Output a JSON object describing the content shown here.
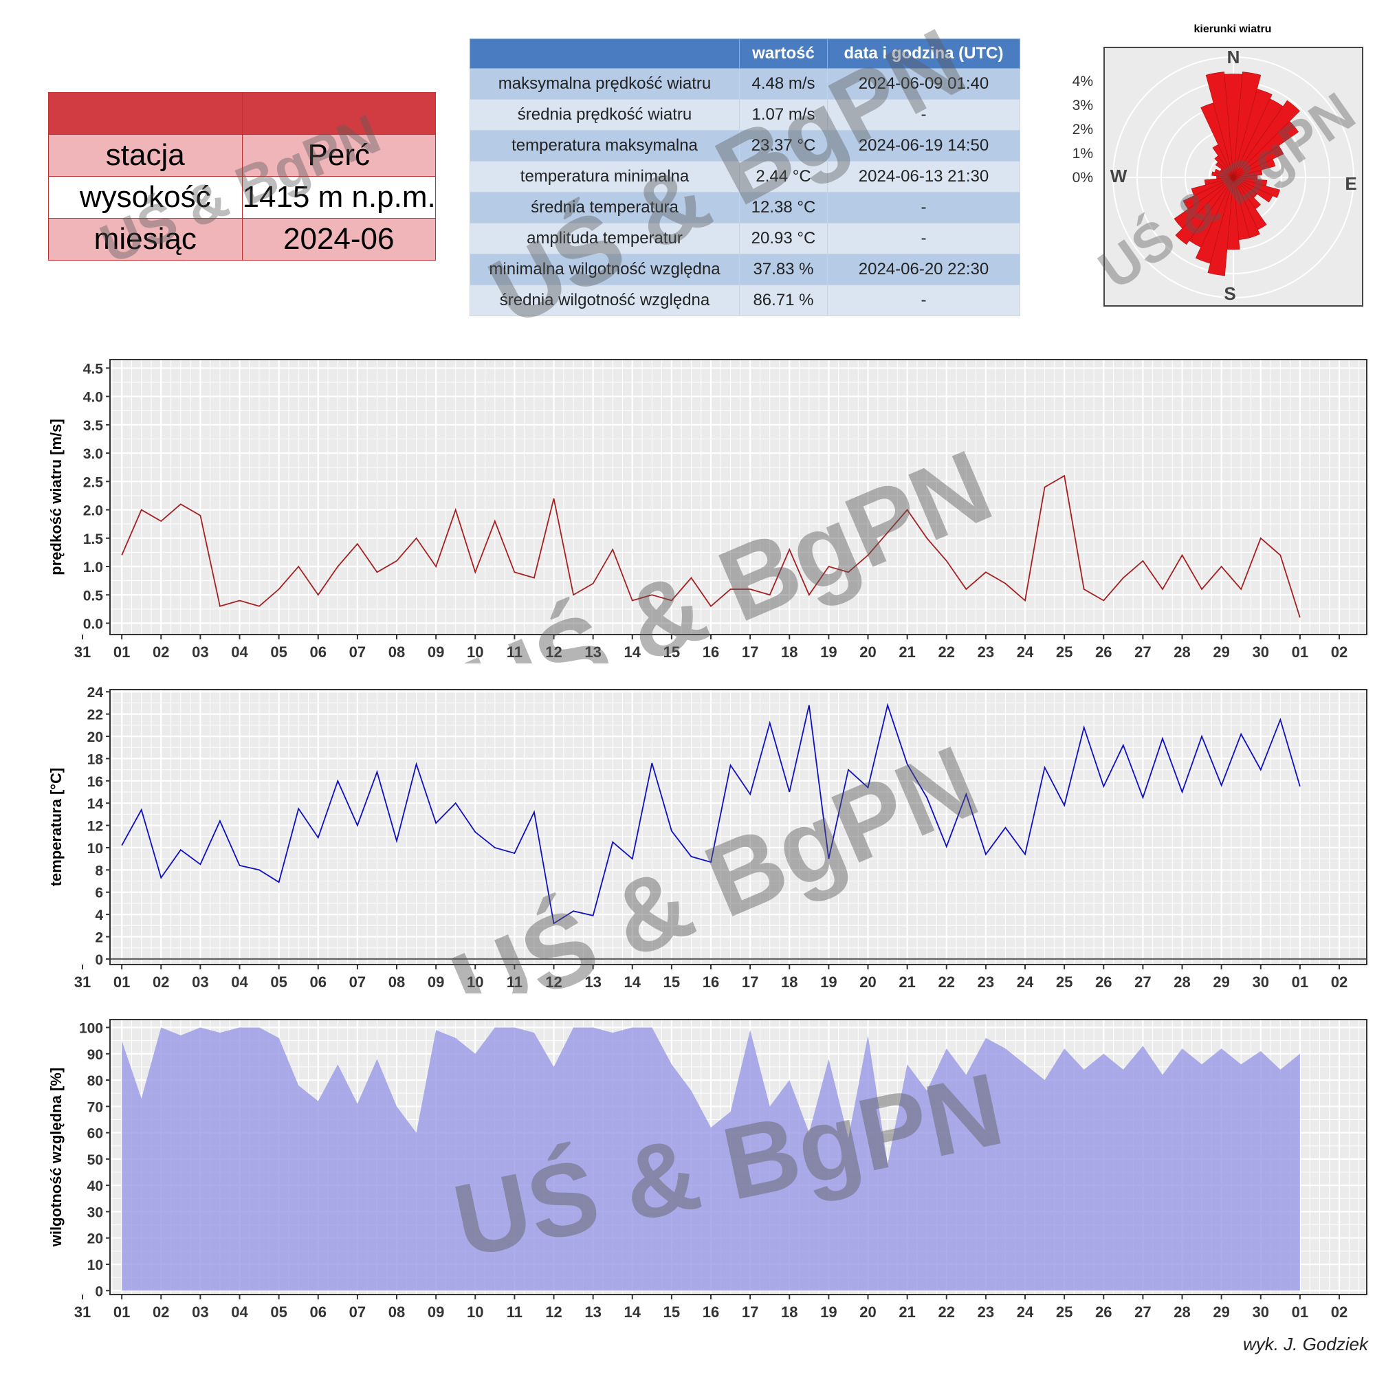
{
  "station": {
    "rows": [
      {
        "label": "stacja",
        "value": "Perć"
      },
      {
        "label": "wysokość",
        "value": "1415 m n.p.m."
      },
      {
        "label": "miesiąc",
        "value": "2024-06"
      }
    ]
  },
  "stats": {
    "headers": [
      "",
      "wartość",
      "data i godzina (UTC)"
    ],
    "rows": [
      {
        "name": "maksymalna prędkość wiatru",
        "value": "4.48 m/s",
        "date": "2024-06-09 01:40"
      },
      {
        "name": "średnia prędkość wiatru",
        "value": "1.07 m/s",
        "date": "-"
      },
      {
        "name": "temperatura maksymalna",
        "value": "23.37 °C",
        "date": "2024-06-19 14:50"
      },
      {
        "name": "temperatura minimalna",
        "value": "2.44 °C",
        "date": "2024-06-13 21:30"
      },
      {
        "name": "średnia temperatura",
        "value": "12.38 °C",
        "date": "-"
      },
      {
        "name": "amplituda temperatur",
        "value": "20.93 °C",
        "date": "-"
      },
      {
        "name": "minimalna wilgotność względna",
        "value": "37.83 %",
        "date": "2024-06-20 22:30"
      },
      {
        "name": "średnia wilgotność względna",
        "value": "86.71 %",
        "date": "-"
      }
    ]
  },
  "watermark": "UŚ & BgPN",
  "credit": "wyk. J. Godziek",
  "colors": {
    "wind": "#a52020",
    "temperature": "#1010c0",
    "humidity": "#9999e6",
    "rose": "#e8151b",
    "panel_bg": "#ebebeb"
  },
  "chart_data": [
    {
      "type": "bar",
      "subtype": "polar-wind-rose",
      "title": "kierunki wiatru",
      "direction_labels": [
        "N",
        "E",
        "S",
        "W"
      ],
      "radial_ticks": [
        "0%",
        "1%",
        "2%",
        "3%",
        "4%"
      ],
      "rmax_percent": 5,
      "directions_deg": [
        0,
        10,
        20,
        30,
        40,
        50,
        60,
        70,
        80,
        90,
        100,
        110,
        120,
        130,
        140,
        150,
        160,
        170,
        180,
        190,
        200,
        210,
        220,
        230,
        240,
        250,
        260,
        270,
        280,
        290,
        300,
        310,
        320,
        330,
        340,
        350
      ],
      "frequency_percent": [
        4.3,
        4.4,
        3.8,
        3.6,
        3.9,
        3.3,
        2.3,
        1.8,
        1.2,
        1.0,
        1.4,
        2.0,
        1.8,
        1.2,
        1.6,
        2.4,
        2.6,
        2.6,
        3.0,
        4.1,
        3.7,
        3.2,
        3.4,
        3.0,
        2.3,
        1.8,
        1.2,
        0.7,
        0.9,
        0.8,
        0.6,
        0.9,
        1.1,
        1.5,
        3.2,
        4.4
      ]
    },
    {
      "type": "line",
      "ylabel": "prędkość wiatru [m/s]",
      "x_ticks": [
        "31",
        "01",
        "02",
        "03",
        "04",
        "05",
        "06",
        "07",
        "08",
        "09",
        "10",
        "11",
        "12",
        "13",
        "14",
        "15",
        "16",
        "17",
        "18",
        "19",
        "20",
        "21",
        "22",
        "23",
        "24",
        "25",
        "26",
        "27",
        "28",
        "29",
        "30",
        "01",
        "02"
      ],
      "x_range_days": [
        -0.3,
        31.7
      ],
      "ylim": [
        -0.2,
        4.65
      ],
      "y_ticks": [
        0.0,
        0.5,
        1.0,
        1.5,
        2.0,
        2.5,
        3.0,
        3.5,
        4.0,
        4.5
      ],
      "y_tick_labels": [
        "0.0",
        "0.5",
        "1.0",
        "1.5",
        "2.0",
        "2.5",
        "3.0",
        "3.5",
        "4.0",
        "4.5"
      ],
      "day_offset": [
        0,
        0.5,
        1,
        1.5,
        2,
        2.5,
        3,
        3.5,
        4,
        4.5,
        5,
        5.5,
        6,
        6.5,
        7,
        7.5,
        8,
        8.5,
        9,
        9.5,
        10,
        10.5,
        11,
        11.5,
        12,
        12.5,
        13,
        13.5,
        14,
        14.5,
        15,
        15.5,
        16,
        16.5,
        17,
        17.5,
        18,
        18.5,
        19,
        19.5,
        20,
        20.5,
        21,
        21.5,
        22,
        22.5,
        23,
        23.5,
        24,
        24.5,
        25,
        25.5,
        26,
        26.5,
        27,
        27.5,
        28,
        28.5,
        29,
        29.5,
        30
      ],
      "values": [
        1.2,
        2.0,
        1.8,
        2.1,
        1.9,
        0.3,
        0.4,
        0.3,
        0.6,
        1.0,
        0.5,
        1.0,
        1.4,
        0.9,
        1.1,
        1.5,
        1.0,
        2.0,
        0.9,
        1.8,
        0.9,
        0.8,
        2.2,
        0.5,
        0.7,
        1.3,
        0.4,
        0.5,
        0.4,
        0.8,
        0.3,
        0.6,
        0.6,
        0.5,
        1.3,
        0.5,
        1.0,
        0.9,
        1.2,
        1.6,
        2.0,
        1.5,
        1.1,
        0.6,
        0.9,
        0.7,
        0.4,
        2.4,
        2.6,
        0.6,
        0.4,
        0.8,
        1.1,
        0.6,
        1.2,
        0.6,
        1.0,
        0.6,
        1.5,
        1.2,
        0.1
      ]
    },
    {
      "type": "line",
      "ylabel": "temperatura [°C]",
      "x_ticks": [
        "31",
        "01",
        "02",
        "03",
        "04",
        "05",
        "06",
        "07",
        "08",
        "09",
        "10",
        "11",
        "12",
        "13",
        "14",
        "15",
        "16",
        "17",
        "18",
        "19",
        "20",
        "21",
        "22",
        "23",
        "24",
        "25",
        "26",
        "27",
        "28",
        "29",
        "30",
        "01",
        "02"
      ],
      "x_range_days": [
        -0.3,
        31.7
      ],
      "ylim": [
        -0.5,
        24.2
      ],
      "y_ticks": [
        0,
        2,
        4,
        6,
        8,
        10,
        12,
        14,
        16,
        18,
        20,
        22,
        24
      ],
      "y_tick_labels": [
        "0",
        "2",
        "4",
        "6",
        "8",
        "10",
        "12",
        "14",
        "16",
        "18",
        "20",
        "22",
        "24"
      ],
      "day_offset": [
        0,
        0.5,
        1,
        1.5,
        2,
        2.5,
        3,
        3.5,
        4,
        4.5,
        5,
        5.5,
        6,
        6.5,
        7,
        7.5,
        8,
        8.5,
        9,
        9.5,
        10,
        10.5,
        11,
        11.5,
        12,
        12.5,
        13,
        13.5,
        14,
        14.5,
        15,
        15.5,
        16,
        16.5,
        17,
        17.5,
        18,
        18.5,
        19,
        19.5,
        20,
        20.5,
        21,
        21.5,
        22,
        22.5,
        23,
        23.5,
        24,
        24.5,
        25,
        25.5,
        26,
        26.5,
        27,
        27.5,
        28,
        28.5,
        29,
        29.5,
        30
      ],
      "values": [
        10.2,
        13.4,
        7.3,
        9.8,
        8.5,
        12.4,
        8.4,
        8.0,
        6.9,
        13.5,
        10.9,
        16.0,
        12.0,
        16.8,
        10.6,
        17.5,
        12.2,
        14.0,
        11.4,
        10.0,
        9.5,
        13.2,
        3.2,
        4.3,
        3.9,
        10.5,
        9.0,
        17.6,
        11.5,
        9.2,
        8.7,
        17.4,
        14.8,
        21.2,
        15.0,
        22.8,
        9.0,
        17.0,
        15.4,
        22.8,
        17.5,
        14.5,
        10.1,
        14.8,
        9.4,
        11.8,
        9.4,
        17.2,
        13.8,
        20.8,
        15.5,
        19.2,
        14.5,
        19.8,
        15.0,
        20.0,
        15.6,
        20.2,
        17.0,
        21.5,
        15.5
      ]
    },
    {
      "type": "area",
      "ylabel": "wilgotność względna [%]",
      "x_ticks": [
        "31",
        "01",
        "02",
        "03",
        "04",
        "05",
        "06",
        "07",
        "08",
        "09",
        "10",
        "11",
        "12",
        "13",
        "14",
        "15",
        "16",
        "17",
        "18",
        "19",
        "20",
        "21",
        "22",
        "23",
        "24",
        "25",
        "26",
        "27",
        "28",
        "29",
        "30",
        "01",
        "02"
      ],
      "x_range_days": [
        -0.3,
        31.7
      ],
      "ylim": [
        -1.5,
        103
      ],
      "y_ticks": [
        0,
        10,
        20,
        30,
        40,
        50,
        60,
        70,
        80,
        90,
        100
      ],
      "y_tick_labels": [
        "0",
        "10",
        "20",
        "30",
        "40",
        "50",
        "60",
        "70",
        "80",
        "90",
        "100"
      ],
      "day_offset": [
        0,
        0.5,
        1,
        1.5,
        2,
        2.5,
        3,
        3.5,
        4,
        4.5,
        5,
        5.5,
        6,
        6.5,
        7,
        7.5,
        8,
        8.5,
        9,
        9.5,
        10,
        10.5,
        11,
        11.5,
        12,
        12.5,
        13,
        13.5,
        14,
        14.5,
        15,
        15.5,
        16,
        16.5,
        17,
        17.5,
        18,
        18.5,
        19,
        19.5,
        20,
        20.5,
        21,
        21.5,
        22,
        22.5,
        23,
        23.5,
        24,
        24.5,
        25,
        25.5,
        26,
        26.5,
        27,
        27.5,
        28,
        28.5,
        29,
        29.5,
        30
      ],
      "values": [
        95,
        73,
        100,
        97,
        100,
        98,
        100,
        100,
        96,
        78,
        72,
        86,
        71,
        88,
        70,
        60,
        99,
        96,
        90,
        100,
        100,
        98,
        85,
        100,
        100,
        98,
        100,
        100,
        86,
        76,
        62,
        68,
        99,
        70,
        80,
        60,
        88,
        58,
        97,
        48,
        86,
        76,
        92,
        82,
        96,
        92,
        86,
        80,
        92,
        84,
        90,
        84,
        93,
        82,
        92,
        86,
        92,
        86,
        91,
        84,
        90
      ]
    }
  ]
}
